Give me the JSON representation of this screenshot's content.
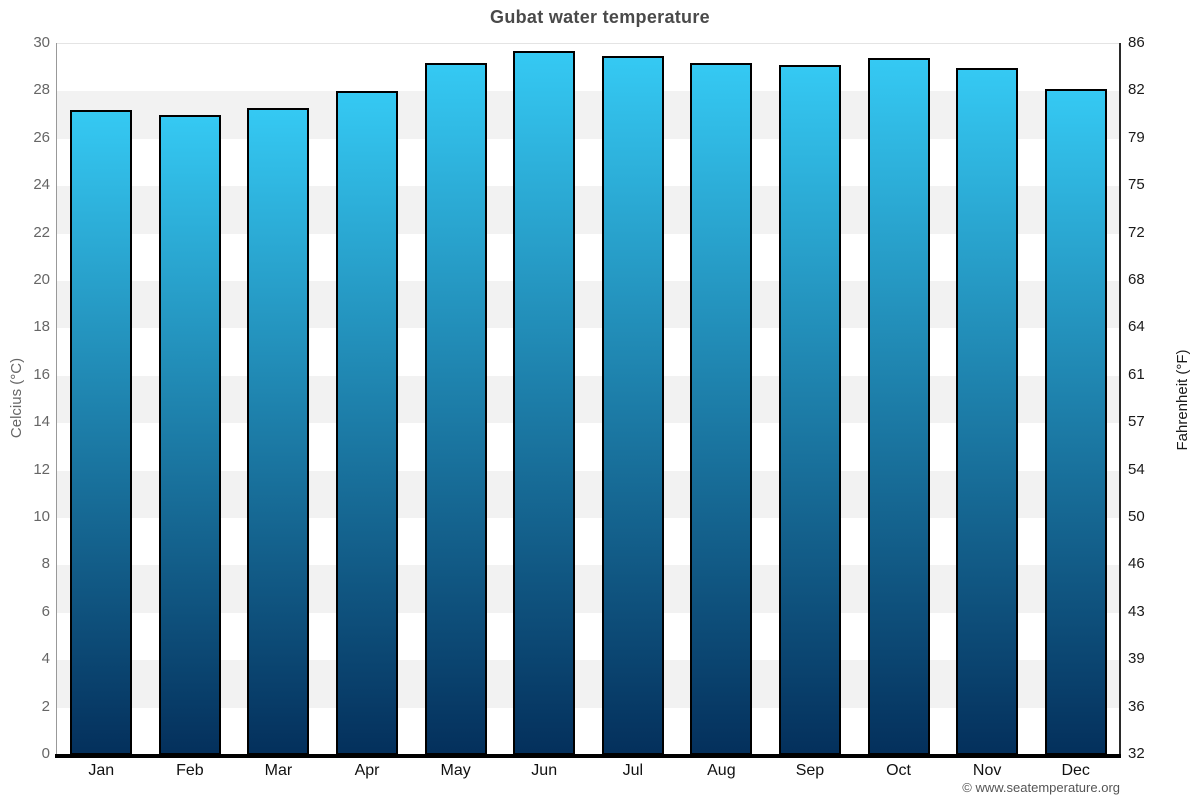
{
  "chart_data": {
    "type": "bar",
    "title": "Gubat water temperature",
    "categories": [
      "Jan",
      "Feb",
      "Mar",
      "Apr",
      "May",
      "Jun",
      "Jul",
      "Aug",
      "Sep",
      "Oct",
      "Nov",
      "Dec"
    ],
    "values": [
      27.2,
      27.0,
      27.3,
      28.0,
      29.2,
      29.7,
      29.5,
      29.2,
      29.1,
      29.4,
      29.0,
      28.1
    ],
    "xlabel": "",
    "ylabel_left": "Celcius (°C)",
    "ylabel_right": "Fahrenheit (°F)",
    "ylim": [
      0,
      30
    ],
    "yticks_celsius": [
      0,
      2,
      4,
      6,
      8,
      10,
      12,
      14,
      16,
      18,
      20,
      22,
      24,
      26,
      28,
      30
    ],
    "yticks_fahrenheit": [
      32,
      36,
      39,
      43,
      46,
      50,
      54,
      57,
      61,
      64,
      68,
      72,
      75,
      79,
      82,
      86
    ],
    "legend": "none",
    "grid": "alternating horizontal bands every 2°C",
    "band_color": "#f2f2f2",
    "bar_gradient_top": "#35c9f3",
    "bar_gradient_bottom": "#04305c",
    "bar_border_color": "#000000",
    "title_color": "#4a4a4a",
    "left_axis_text_color": "#666666",
    "right_axis_text_color": "#1a1a1a"
  },
  "footer": {
    "copyright": "© www.seatemperature.org"
  }
}
